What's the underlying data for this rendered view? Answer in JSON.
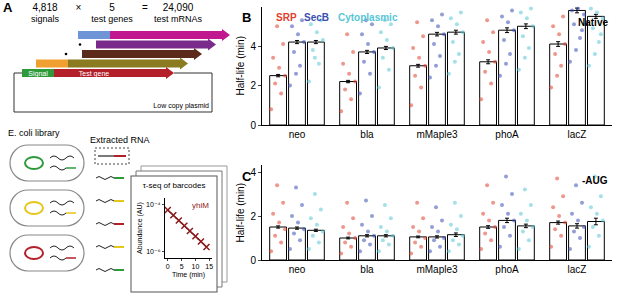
{
  "chart_data": [
    {
      "type": "bar",
      "panel_label": "B",
      "annotation": "Native",
      "y_label": "Half-life (min)",
      "categories": [
        "neo",
        "bla",
        "mMaple3",
        "phoA",
        "lacZ"
      ],
      "legend": "top left",
      "ylim": [
        0,
        6
      ],
      "yticks": [
        0,
        2,
        4
      ],
      "grid": false,
      "series": [
        {
          "name": "SRP",
          "color": "#e0412f",
          "values": [
            2.5,
            2.2,
            3.0,
            3.2,
            4.1
          ],
          "errors": [
            0.06,
            0.06,
            0.07,
            0.1,
            0.12
          ],
          "points": [
            [
              0.8,
              1.6,
              2.1,
              2.5,
              2.9,
              3.4,
              4.1,
              5.0
            ],
            [
              0.7,
              1.3,
              1.8,
              2.2,
              2.6,
              3.1,
              3.7,
              4.6
            ],
            [
              1.0,
              1.9,
              2.5,
              3.0,
              3.4,
              3.9,
              4.5,
              5.2
            ],
            [
              1.3,
              2.1,
              2.7,
              3.2,
              3.7,
              4.2,
              4.7,
              5.3
            ],
            [
              1.9,
              3.0,
              3.6,
              4.1,
              4.6,
              5.0,
              5.5,
              2.5
            ]
          ]
        },
        {
          "name": "SecB",
          "color": "#3a4fb0",
          "values": [
            4.2,
            3.7,
            4.6,
            4.8,
            5.8
          ],
          "errors": [
            0.08,
            0.08,
            0.09,
            0.12,
            0.12
          ],
          "points": [
            [
              2.0,
              3.0,
              3.7,
              4.2,
              4.6,
              5.0,
              5.3,
              2.6
            ],
            [
              1.6,
              2.6,
              3.2,
              3.7,
              4.1,
              4.6,
              5.1,
              5.3
            ],
            [
              2.4,
              3.5,
              4.1,
              4.6,
              5.0,
              5.3,
              5.6,
              3.0
            ],
            [
              2.5,
              3.6,
              4.3,
              4.8,
              5.2,
              5.5,
              5.8,
              3.1
            ],
            [
              3.2,
              4.4,
              5.1,
              5.6,
              5.9,
              5.8,
              4.8,
              3.8
            ]
          ]
        },
        {
          "name": "Cytoplasmic",
          "color": "#57c6d6",
          "values": [
            4.2,
            3.9,
            4.7,
            5.0,
            5.5
          ],
          "errors": [
            0.08,
            0.08,
            0.1,
            0.12,
            0.1
          ],
          "points": [
            [
              2.2,
              3.1,
              3.8,
              4.3,
              4.7,
              5.1,
              5.3,
              3.4
            ],
            [
              1.9,
              2.8,
              3.4,
              3.9,
              4.3,
              4.7,
              5.1,
              5.3
            ],
            [
              2.6,
              3.6,
              4.2,
              4.7,
              5.1,
              5.4,
              5.7,
              3.2
            ],
            [
              2.8,
              3.9,
              4.5,
              5.0,
              5.4,
              5.7,
              5.9,
              3.4
            ],
            [
              3.0,
              4.2,
              4.9,
              5.4,
              5.7,
              5.9,
              4.6,
              3.6
            ]
          ]
        }
      ]
    },
    {
      "type": "bar",
      "panel_label": "C",
      "annotation": "-AUG",
      "y_label": "Half-life (min)",
      "categories": [
        "neo",
        "bla",
        "mMaple3",
        "phoA",
        "lacZ"
      ],
      "ylim": [
        0,
        4.3
      ],
      "yticks": [
        0,
        2,
        4
      ],
      "grid": false,
      "series": [
        {
          "color": "#e0412f",
          "values": [
            1.5,
            1.0,
            1.05,
            1.5,
            1.7
          ],
          "errors": [
            0.05,
            0.04,
            0.04,
            0.06,
            0.07
          ],
          "points": [
            [
              0.4,
              0.8,
              1.1,
              1.4,
              1.7,
              2.1,
              2.6,
              3.4
            ],
            [
              0.3,
              0.6,
              0.8,
              1.0,
              1.2,
              1.5,
              1.9,
              2.6
            ],
            [
              0.3,
              0.6,
              0.8,
              1.0,
              1.3,
              1.5,
              1.9,
              2.6
            ],
            [
              0.5,
              0.9,
              1.2,
              1.5,
              1.8,
              2.1,
              2.6,
              3.4
            ],
            [
              0.6,
              1.1,
              1.4,
              1.7,
              2.0,
              2.4,
              2.9,
              3.7
            ]
          ]
        },
        {
          "color": "#3a4fb0",
          "values": [
            1.45,
            1.1,
            1.05,
            1.8,
            1.55
          ],
          "errors": [
            0.05,
            0.05,
            0.05,
            0.1,
            0.1
          ],
          "points": [
            [
              0.5,
              0.9,
              1.2,
              1.4,
              1.7,
              2.0,
              2.5,
              3.3
            ],
            [
              0.4,
              0.7,
              0.9,
              1.1,
              1.3,
              1.6,
              2.0,
              2.7
            ],
            [
              0.4,
              0.6,
              0.9,
              1.0,
              1.3,
              1.5,
              1.8,
              2.4
            ],
            [
              0.6,
              1.1,
              1.5,
              1.8,
              2.1,
              2.5,
              3.0,
              3.8
            ],
            [
              0.5,
              1.0,
              1.3,
              1.5,
              1.8,
              2.1,
              2.6,
              3.4
            ]
          ]
        },
        {
          "color": "#57c6d6",
          "values": [
            1.35,
            1.1,
            1.15,
            1.55,
            1.75
          ],
          "errors": [
            0.05,
            0.05,
            0.08,
            0.08,
            0.15
          ],
          "points": [
            [
              0.5,
              0.8,
              1.1,
              1.3,
              1.6,
              1.9,
              2.3,
              3.0
            ],
            [
              0.4,
              0.7,
              0.9,
              1.1,
              1.3,
              1.5,
              1.9,
              2.5
            ],
            [
              0.4,
              0.7,
              0.9,
              1.1,
              1.4,
              1.6,
              2.0,
              2.6
            ],
            [
              0.5,
              0.9,
              1.3,
              1.5,
              1.8,
              2.1,
              2.5,
              3.2
            ],
            [
              0.6,
              1.1,
              1.5,
              1.8,
              2.1,
              2.4,
              2.9,
              3.8
            ]
          ]
        }
      ]
    },
    {
      "type": "scatter",
      "title": "τ-seq of barcodes",
      "x_label": "Time (min)",
      "y_label": "Abundance (AU)",
      "log": "y",
      "xlim": [
        -1,
        16
      ],
      "xticks": [
        0,
        5,
        10,
        15
      ],
      "ylim": [
        5e-07,
        0.0002
      ],
      "yticks": [
        {
          "value": 0.0001,
          "label": "10⁻⁴"
        },
        {
          "value": 1e-06,
          "label": "10⁻⁶"
        }
      ],
      "series": [
        {
          "name": "yhiM",
          "color": "#8b1a1a",
          "marker": "x",
          "line_style": "solid",
          "x": [
            0,
            2,
            4,
            6,
            8,
            10,
            12,
            14
          ],
          "values": [
            6e-05,
            3.6e-05,
            2.1e-05,
            1.25e-05,
            7.4e-06,
            4.4e-06,
            2.6e-06,
            1.5e-06
          ]
        }
      ]
    }
  ],
  "diagram": {
    "panel_label": "A",
    "equation": {
      "items": [
        {
          "number": "4,818",
          "label": "signals"
        },
        {
          "number": "5",
          "label": "test genes"
        },
        {
          "number": "24,090",
          "label": "test mRNAs"
        }
      ],
      "operators": [
        "×",
        "="
      ]
    },
    "construct": {
      "signal_label": "Signal",
      "gene_label": "Test gene",
      "plasmid_label": "Low copy plasmid"
    },
    "library_label": "E. coli library",
    "rna_label": "Extracted RNA"
  }
}
